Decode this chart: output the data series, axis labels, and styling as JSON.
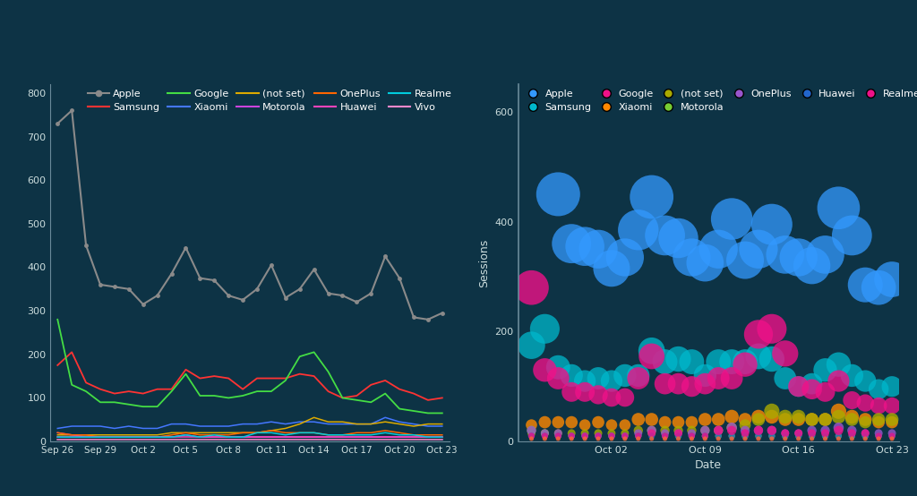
{
  "bg_color": "#0d3345",
  "brands": [
    "Apple",
    "Samsung",
    "Google",
    "Xiaomi",
    "(not set)",
    "Motorola",
    "OnePlus",
    "Huawei",
    "Realme",
    "Vivo"
  ],
  "line_colors": {
    "Apple": "#8a8a8a",
    "Samsung": "#ff3333",
    "Google": "#44dd44",
    "Xiaomi": "#4477ff",
    "(not set)": "#ddaa00",
    "Motorola": "#cc44dd",
    "OnePlus": "#ff6600",
    "Huawei": "#ff44bb",
    "Realme": "#00ccdd",
    "Vivo": "#ff88cc"
  },
  "bubble_colors": {
    "Apple": "#3399ff",
    "Samsung": "#00b8cc",
    "Google": "#ee1188",
    "Xiaomi": "#ff8800",
    "(not set)": "#aaaa00",
    "Motorola": "#77cc33",
    "OnePlus": "#9955cc",
    "Huawei": "#2266cc",
    "Realme": "#ee1188",
    "Vivo": "#ff6633"
  },
  "apple_line": [
    730,
    760,
    450,
    360,
    355,
    350,
    315,
    335,
    385,
    445,
    375,
    370,
    335,
    325,
    350,
    405,
    330,
    350,
    395,
    340,
    335,
    320,
    340,
    425,
    375,
    285,
    280,
    295
  ],
  "samsung_line": [
    175,
    205,
    135,
    120,
    110,
    115,
    110,
    120,
    120,
    165,
    145,
    150,
    145,
    120,
    145,
    145,
    145,
    155,
    150,
    115,
    100,
    105,
    130,
    140,
    120,
    110,
    95,
    100
  ],
  "google_line": [
    280,
    130,
    115,
    90,
    90,
    85,
    80,
    80,
    115,
    155,
    105,
    105,
    100,
    105,
    115,
    115,
    140,
    195,
    205,
    160,
    100,
    95,
    90,
    110,
    75,
    70,
    65,
    65
  ],
  "xiaomi_line": [
    30,
    35,
    35,
    35,
    30,
    35,
    30,
    30,
    40,
    40,
    35,
    35,
    35,
    40,
    40,
    45,
    40,
    45,
    45,
    40,
    40,
    40,
    40,
    55,
    45,
    40,
    35,
    35
  ],
  "notset_line": [
    15,
    15,
    15,
    15,
    15,
    15,
    15,
    15,
    20,
    20,
    20,
    20,
    20,
    20,
    20,
    25,
    30,
    40,
    55,
    45,
    45,
    40,
    40,
    45,
    40,
    35,
    40,
    40
  ],
  "motorola_line": [
    20,
    15,
    10,
    10,
    10,
    10,
    10,
    10,
    10,
    15,
    10,
    10,
    10,
    10,
    10,
    10,
    10,
    10,
    10,
    10,
    10,
    10,
    10,
    10,
    10,
    10,
    10,
    10
  ],
  "oneplus_line": [
    20,
    15,
    15,
    10,
    10,
    10,
    10,
    10,
    15,
    20,
    15,
    15,
    15,
    20,
    20,
    25,
    20,
    20,
    20,
    15,
    15,
    20,
    20,
    25,
    20,
    15,
    15,
    15
  ],
  "huawei_line": [
    10,
    10,
    10,
    10,
    10,
    10,
    10,
    10,
    10,
    10,
    10,
    10,
    10,
    10,
    10,
    10,
    10,
    10,
    10,
    10,
    10,
    10,
    10,
    10,
    10,
    10,
    10,
    10
  ],
  "realme_line": [
    10,
    10,
    10,
    10,
    10,
    10,
    10,
    10,
    10,
    15,
    10,
    15,
    10,
    10,
    20,
    20,
    15,
    20,
    20,
    15,
    15,
    15,
    15,
    20,
    15,
    15,
    10,
    10
  ],
  "vivo_line": [
    5,
    5,
    5,
    5,
    5,
    5,
    5,
    5,
    5,
    5,
    5,
    5,
    5,
    5,
    5,
    5,
    5,
    5,
    5,
    5,
    5,
    5,
    5,
    5,
    5,
    5,
    5,
    5
  ],
  "xtick_labels_line": [
    "Sep 26",
    "Sep 29",
    "Oct 2",
    "Oct 5",
    "Oct 8",
    "Oct 11",
    "Oct 14",
    "Oct 17",
    "Oct 20",
    "Oct 23"
  ],
  "xtick_labels_bubble": [
    "Oct 02",
    "Oct 09",
    "Oct 16",
    "Oct 23"
  ],
  "ylim_line": [
    0,
    820
  ],
  "ylim_bubble": [
    0,
    650
  ],
  "xlabel_bubble": "Date",
  "ylabel_bubble": "Sessions"
}
